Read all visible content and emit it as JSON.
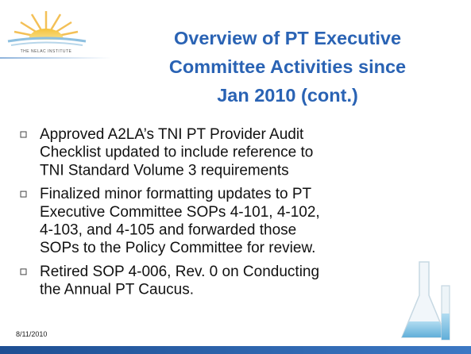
{
  "logo": {
    "text": "THE NELAC INSTITUTE"
  },
  "header": {
    "title": [
      "Overview of PT Executive",
      "Committee Activities since",
      "Jan 2010 (cont.)"
    ]
  },
  "bullets": [
    [
      "Approved A2LA’s TNI PT Provider Audit",
      "Checklist updated to include reference to",
      "TNI Standard Volume 3 requirements"
    ],
    [
      "Finalized minor formatting updates to PT",
      "Executive Committee SOPs 4-101, 4-102,",
      "4-103, and 4-105 and forwarded those",
      "SOPs to the Policy Committee for review."
    ],
    [
      "Retired SOP 4-006, Rev. 0 on Conducting",
      "the Annual PT Caucus."
    ]
  ],
  "footer": {
    "date": "8/11/2010"
  }
}
